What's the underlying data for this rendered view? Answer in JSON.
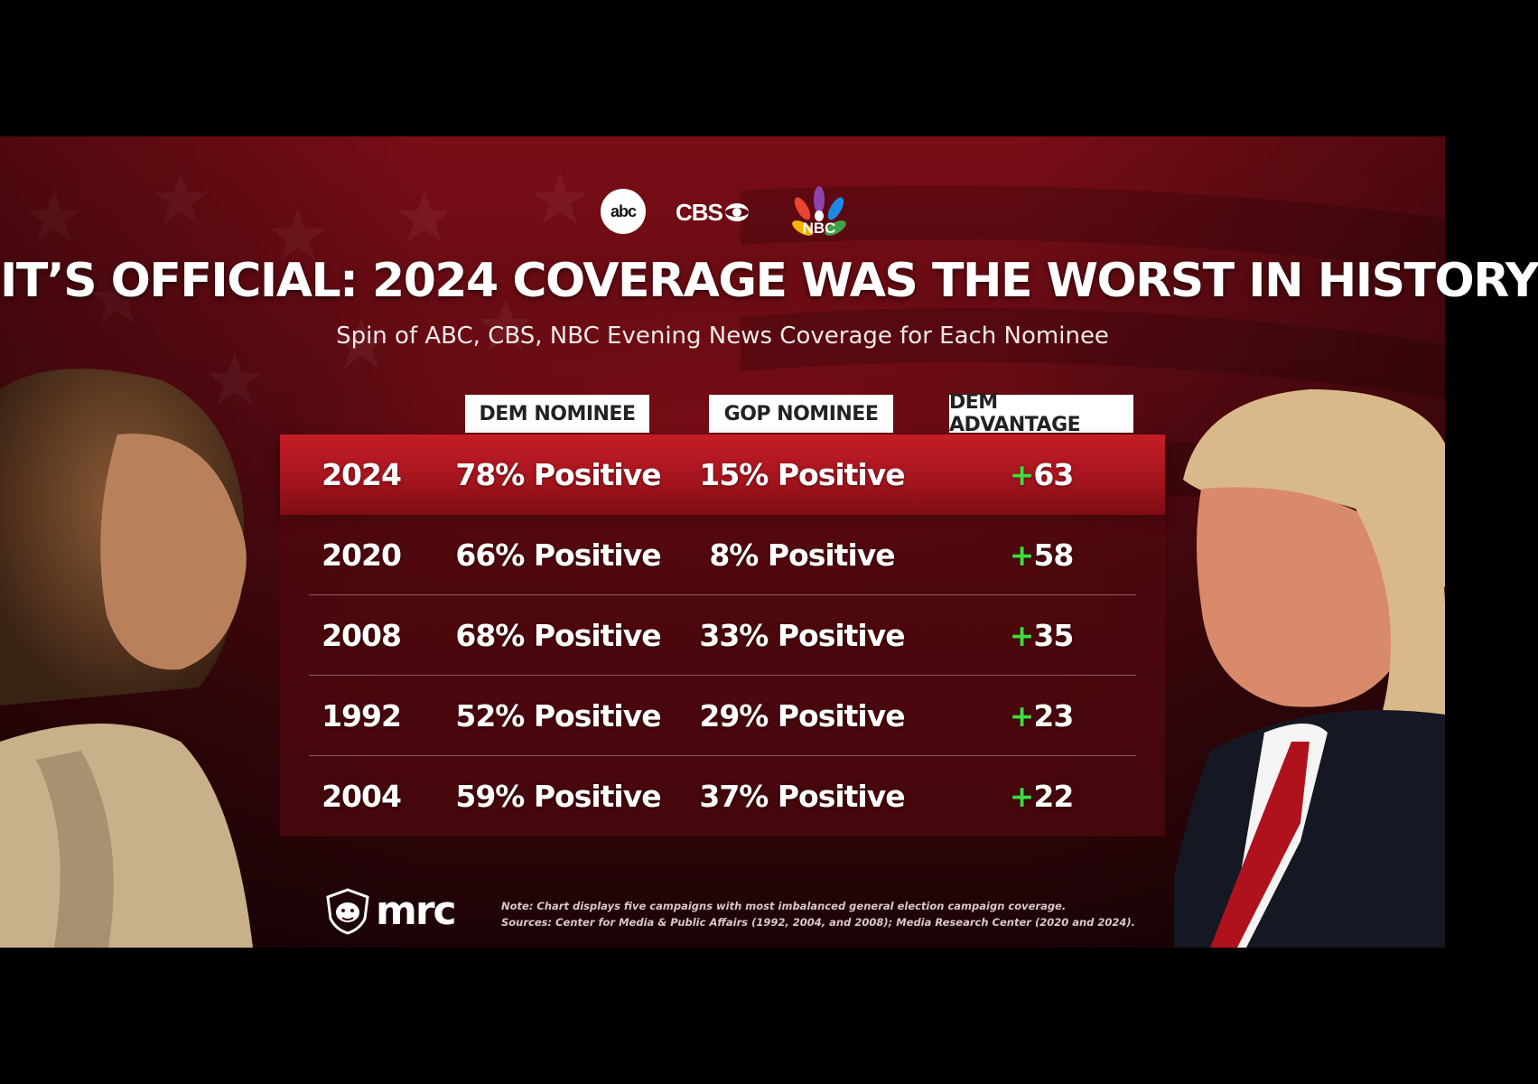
{
  "logos": {
    "abc": "abc",
    "cbs": "CBS",
    "nbc": "NBC",
    "mrc": "mrc"
  },
  "title": "IT’S OFFICIAL: 2024 COVERAGE WAS THE WORST IN HISTORY",
  "subtitle": "Spin of ABC, CBS, NBC Evening News Coverage for Each Nominee",
  "colors": {
    "background": "#5c0a12",
    "highlight_row": "#c51d27",
    "advantage_plus": "#3ddc3d",
    "header_bg": "#ffffff"
  },
  "chart_data": {
    "type": "table",
    "columns": [
      "",
      "DEM NOMINEE",
      "GOP NOMINEE",
      "DEM ADVANTAGE"
    ],
    "rows": [
      {
        "year": "2024",
        "dem": "78% Positive",
        "gop": "15% Positive",
        "adv_sign": "+",
        "adv": "63",
        "highlight": true
      },
      {
        "year": "2020",
        "dem": "66% Positive",
        "gop": "8% Positive",
        "adv_sign": "+",
        "adv": "58",
        "highlight": false
      },
      {
        "year": "2008",
        "dem": "68% Positive",
        "gop": "33% Positive",
        "adv_sign": "+",
        "adv": "35",
        "highlight": false
      },
      {
        "year": "1992",
        "dem": "52% Positive",
        "gop": "29% Positive",
        "adv_sign": "+",
        "adv": "23",
        "highlight": false
      },
      {
        "year": "2004",
        "dem": "59% Positive",
        "gop": "37% Positive",
        "adv_sign": "+",
        "adv": "22",
        "highlight": false
      }
    ],
    "dem_positive_pct": [
      78,
      66,
      68,
      52,
      59
    ],
    "gop_positive_pct": [
      15,
      8,
      33,
      29,
      37
    ],
    "dem_advantage": [
      63,
      58,
      35,
      23,
      22
    ]
  },
  "footer": {
    "note": "Note: Chart displays five campaigns with most imbalanced general election campaign coverage.",
    "sources": "Sources: Center for Media & Public Affairs (1992, 2004, and 2008); Media Research Center (2020 and 2024)."
  }
}
